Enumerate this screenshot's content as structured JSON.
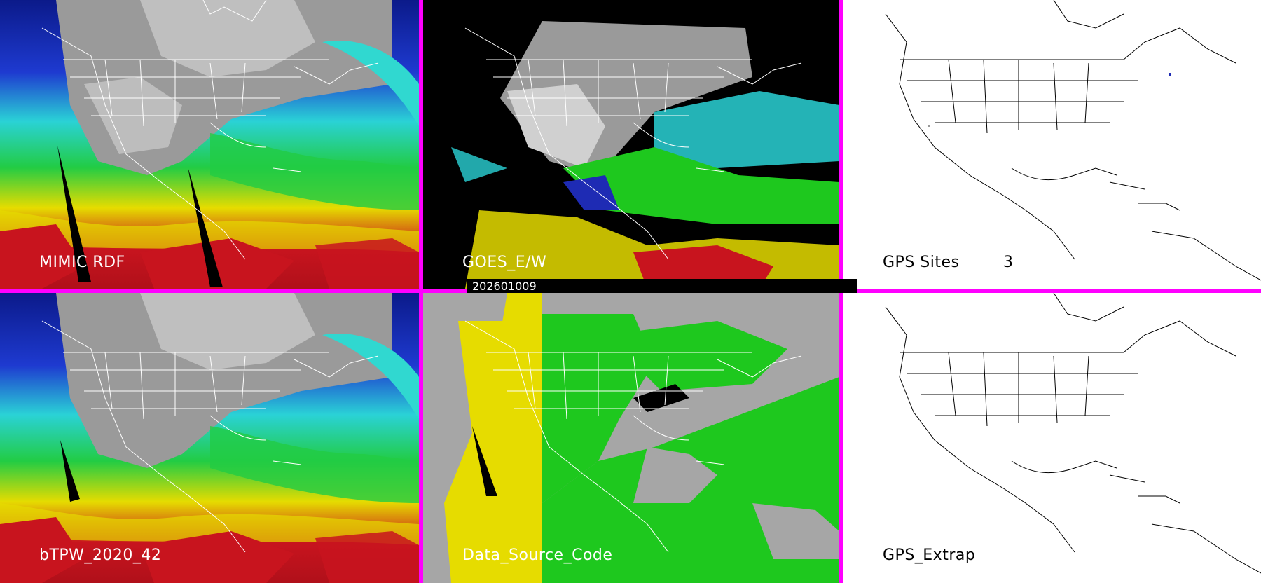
{
  "panels": {
    "mimic": {
      "label": "MIMIC RDF"
    },
    "goes": {
      "label": "GOES_E/W"
    },
    "gps_sites": {
      "label": "GPS Sites",
      "count": "3"
    },
    "btpw": {
      "label": "bTPW_2020_42"
    },
    "data_source": {
      "label": "Data_Source_Code"
    },
    "gps_extrap": {
      "label": "GPS_Extrap"
    }
  },
  "timestamp": "202601009",
  "colors": {
    "divider": "#ff00ff",
    "moist_red": "#c8141e",
    "yellow": "#e6dc00",
    "green": "#1ec81e",
    "cyan": "#2ad2d6",
    "blue": "#1e2bb4",
    "gray": "#a6a6a6"
  }
}
